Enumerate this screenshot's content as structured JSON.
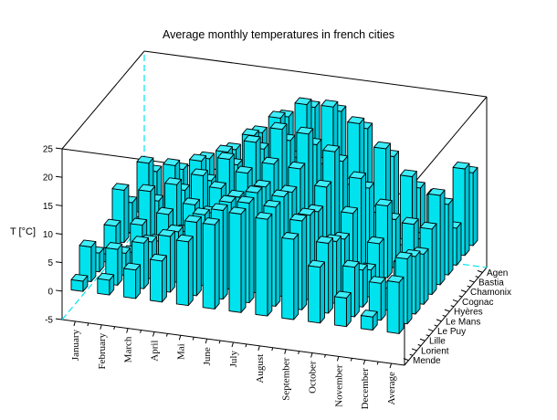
{
  "chart_data": {
    "type": "3d-bar",
    "title": "Average monthly temperatures in french cities",
    "zlabel": "T [°C]",
    "zlim": [
      -5,
      25
    ],
    "z_ticks": [
      -5,
      0,
      5,
      10,
      15,
      20,
      25
    ],
    "categories": [
      "January",
      "February",
      "March",
      "April",
      "Mai",
      "June",
      "July",
      "August",
      "September",
      "October",
      "November",
      "December",
      "Average"
    ],
    "depth_axis": {
      "front_row": "Mende",
      "back_row": "Agen",
      "tick_order_back_to_front": [
        "Agen",
        "Bastia",
        "Chamonix",
        "Cognac",
        "Hyères",
        "Le Mans",
        "Le Puy",
        "Lille",
        "Lorient",
        "Mende"
      ]
    },
    "series": [
      {
        "name": "Agen",
        "values": [
          5.6,
          6.6,
          9.1,
          11.3,
          14.9,
          18.3,
          20.6,
          20.5,
          18.1,
          13.8,
          8.9,
          5.9,
          12.8
        ]
      },
      {
        "name": "Bastia",
        "values": [
          8.8,
          9.0,
          10.4,
          12.6,
          16.1,
          19.8,
          22.8,
          23.0,
          20.7,
          16.9,
          12.6,
          9.8,
          15.2
        ]
      },
      {
        "name": "Chamonix",
        "values": [
          -2.0,
          -0.8,
          2.2,
          5.6,
          9.8,
          13.0,
          15.2,
          14.7,
          11.7,
          7.4,
          2.3,
          -1.2,
          6.5
        ]
      },
      {
        "name": "Cognac",
        "values": [
          5.3,
          6.2,
          8.7,
          11.0,
          14.4,
          17.8,
          19.9,
          19.8,
          17.5,
          13.4,
          8.5,
          5.7,
          12.4
        ]
      },
      {
        "name": "Hyères",
        "values": [
          9.2,
          9.6,
          11.4,
          13.6,
          17.1,
          20.7,
          23.6,
          23.4,
          20.9,
          16.8,
          12.6,
          10.0,
          15.7
        ]
      },
      {
        "name": "Le Mans",
        "values": [
          4.6,
          5.4,
          7.9,
          10.2,
          13.7,
          17.0,
          19.2,
          19.0,
          16.4,
          12.4,
          7.7,
          4.9,
          11.5
        ]
      },
      {
        "name": "Le Puy",
        "values": [
          1.4,
          2.3,
          4.9,
          7.2,
          11.1,
          14.5,
          16.9,
          16.6,
          13.8,
          9.6,
          4.8,
          2.0,
          8.8
        ]
      },
      {
        "name": "Lille",
        "values": [
          3.3,
          3.9,
          6.5,
          8.9,
          12.5,
          15.3,
          17.6,
          17.5,
          14.9,
          10.9,
          6.5,
          3.9,
          10.1
        ]
      },
      {
        "name": "Lorient",
        "values": [
          6.1,
          6.3,
          8.0,
          9.8,
          12.9,
          15.6,
          17.5,
          17.4,
          15.6,
          12.3,
          8.7,
          6.5,
          11.4
        ]
      },
      {
        "name": "Mende",
        "values": [
          1.8,
          2.6,
          5.0,
          7.2,
          11.2,
          14.8,
          17.3,
          17.0,
          14.1,
          9.8,
          5.0,
          2.3,
          9.0
        ]
      }
    ],
    "legend": "none",
    "grid": "off",
    "colors": {
      "bar_front": "#00e3ee",
      "bar_top": "#3deefa",
      "bar_side": "#00c2d4",
      "hidden_edge": "#00e6f0",
      "frame": "#000000",
      "text": "#000000",
      "background": "#ffffff"
    }
  }
}
